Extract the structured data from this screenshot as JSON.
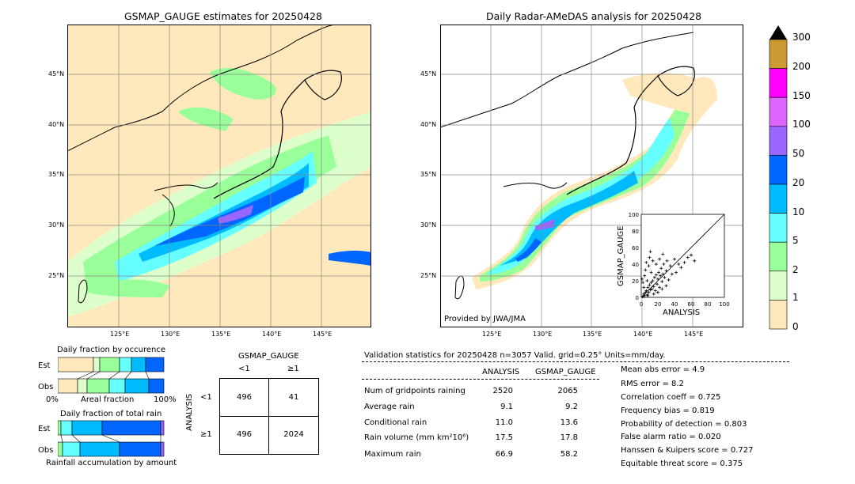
{
  "left_map": {
    "title": "GSMAP_GAUGE estimates for 20250428",
    "lat_labels": [
      "45°N",
      "40°N",
      "35°N",
      "30°N",
      "25°N"
    ],
    "lon_labels": [
      "125°E",
      "130°E",
      "135°E",
      "140°E",
      "145°E"
    ]
  },
  "right_map": {
    "title": "Daily Radar-AMeDAS analysis for 20250428",
    "lat_labels": [
      "45°N",
      "40°N",
      "35°N",
      "30°N",
      "25°N"
    ],
    "lon_labels": [
      "125°E",
      "130°E",
      "135°E",
      "140°E",
      "145°E"
    ],
    "credit": "Provided by JWA/JMA"
  },
  "colorbar": {
    "labels": [
      "300",
      "200",
      "150",
      "100",
      "50",
      "20",
      "10",
      "5",
      "2",
      "1",
      "0"
    ],
    "colors": [
      "#cc9933",
      "#ff00ff",
      "#dd66ff",
      "#9966ff",
      "#0066ff",
      "#00bbff",
      "#66ffff",
      "#99ff99",
      "#ddffcc",
      "#ffe8bb"
    ]
  },
  "chart_data": [
    {
      "type": "scatter",
      "title": "",
      "xlabel": "ANALYSIS",
      "ylabel": "GSMAP_GAUGE",
      "xlim": [
        0,
        100
      ],
      "ylim": [
        0,
        100
      ],
      "x_ticks": [
        "0",
        "20",
        "40",
        "60",
        "80",
        "100"
      ],
      "y_ticks": [
        "0",
        "20",
        "40",
        "60",
        "80",
        "100"
      ],
      "points": [
        [
          2,
          1
        ],
        [
          3,
          4
        ],
        [
          4,
          2
        ],
        [
          5,
          6
        ],
        [
          6,
          8
        ],
        [
          7,
          3
        ],
        [
          8,
          12
        ],
        [
          9,
          6
        ],
        [
          10,
          15
        ],
        [
          11,
          9
        ],
        [
          12,
          18
        ],
        [
          13,
          10
        ],
        [
          14,
          20
        ],
        [
          15,
          13
        ],
        [
          16,
          24
        ],
        [
          17,
          8
        ],
        [
          18,
          27
        ],
        [
          19,
          16
        ],
        [
          20,
          22
        ],
        [
          21,
          30
        ],
        [
          22,
          12
        ],
        [
          23,
          26
        ],
        [
          24,
          35
        ],
        [
          25,
          19
        ],
        [
          26,
          28
        ],
        [
          27,
          40
        ],
        [
          28,
          24
        ],
        [
          30,
          32
        ],
        [
          31,
          44
        ],
        [
          33,
          21
        ],
        [
          35,
          38
        ],
        [
          37,
          28
        ],
        [
          40,
          46
        ],
        [
          42,
          30
        ],
        [
          45,
          40
        ],
        [
          48,
          36
        ],
        [
          52,
          42
        ],
        [
          56,
          48
        ],
        [
          60,
          51
        ],
        [
          64,
          44
        ],
        [
          2,
          18
        ],
        [
          4,
          26
        ],
        [
          5,
          33
        ],
        [
          6,
          42
        ],
        [
          7,
          20
        ],
        [
          9,
          38
        ],
        [
          10,
          48
        ],
        [
          12,
          30
        ],
        [
          14,
          44
        ],
        [
          3,
          12
        ],
        [
          1,
          22
        ],
        [
          8,
          2
        ],
        [
          15,
          4
        ],
        [
          20,
          6
        ],
        [
          25,
          10
        ],
        [
          30,
          14
        ],
        [
          18,
          40
        ],
        [
          22,
          46
        ],
        [
          26,
          52
        ],
        [
          11,
          55
        ]
      ]
    },
    {
      "type": "bar",
      "title": "Daily fraction by occurence",
      "categories": [
        "Est",
        "Obs"
      ],
      "xlabel": "Areal fraction",
      "x_ticks": [
        "0%",
        "100%"
      ]
    },
    {
      "type": "bar",
      "title": "Daily fraction of total rain",
      "categories": [
        "Est",
        "Obs"
      ],
      "xlabel": "Rainfall accumulation by amount"
    }
  ],
  "contingency": {
    "header": "GSMAP_GAUGE",
    "col_labels": [
      "<1",
      "≥1"
    ],
    "row_axis": "ANALYSIS",
    "row_labels": [
      "<1",
      "≥1"
    ],
    "cells": [
      [
        "496",
        "41"
      ],
      [
        "496",
        "2024"
      ]
    ]
  },
  "stats": {
    "header": "Validation statistics for 20250428  n=3057 Valid. grid=0.25° Units=mm/day.",
    "col_analysis": "ANALYSIS",
    "col_gsmap": "GSMAP_GAUGE",
    "rows": [
      {
        "label": "Num of gridpoints raining",
        "analysis": "2520",
        "gsmap": "2065"
      },
      {
        "label": "Average rain",
        "analysis": "9.1",
        "gsmap": "9.2"
      },
      {
        "label": "Conditional rain",
        "analysis": "11.0",
        "gsmap": "13.6"
      },
      {
        "label": "Rain volume (mm km²10⁶)",
        "analysis": "17.5",
        "gsmap": "17.8"
      },
      {
        "label": "Maximum rain",
        "analysis": "66.9",
        "gsmap": "58.2"
      }
    ],
    "scores": [
      "Mean abs error =    4.9",
      "RMS error =    8.2",
      "Correlation coeff =  0.725",
      "Frequency bias =  0.819",
      "Probability of detection =  0.803",
      "False alarm ratio =  0.020",
      "Hanssen & Kuipers score =  0.727",
      "Equitable threat score =  0.375"
    ]
  }
}
